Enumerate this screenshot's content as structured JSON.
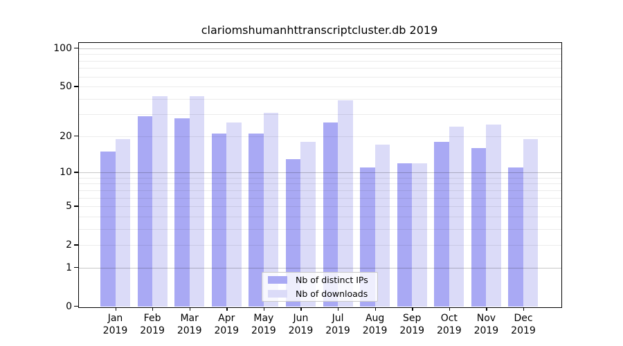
{
  "title": "clariomshumanhttranscriptcluster.db 2019",
  "chart_data": {
    "type": "bar",
    "title": "clariomshumanhttranscriptcluster.db 2019",
    "year": "2019",
    "categories": [
      "Jan",
      "Feb",
      "Mar",
      "Apr",
      "May",
      "Jun",
      "Jul",
      "Aug",
      "Sep",
      "Oct",
      "Nov",
      "Dec"
    ],
    "series": [
      {
        "name": "Nb of distinct IPs",
        "color": "#a9a9f4",
        "values": [
          15,
          29,
          28,
          21,
          21,
          13,
          26,
          11,
          12,
          18,
          16,
          11
        ]
      },
      {
        "name": "Nb of downloads",
        "color": "#dbdbf8",
        "values": [
          19,
          42,
          42,
          26,
          31,
          18,
          39,
          17,
          12,
          24,
          25,
          19
        ]
      }
    ],
    "yscale": "log1p",
    "ylim": [
      0,
      112
    ],
    "yticks": [
      0,
      1,
      2,
      5,
      10,
      20,
      50,
      100
    ],
    "ytick_labels": [
      "0",
      "1",
      "2",
      "5",
      "10",
      "20",
      "50",
      "100"
    ],
    "grid": "horizontal",
    "grid_major": [
      1,
      10,
      100
    ],
    "grid_minor": [
      2,
      3,
      4,
      5,
      6,
      7,
      8,
      9,
      20,
      30,
      40,
      50,
      60,
      70,
      80,
      90
    ],
    "legend_position": "bottom-center"
  }
}
